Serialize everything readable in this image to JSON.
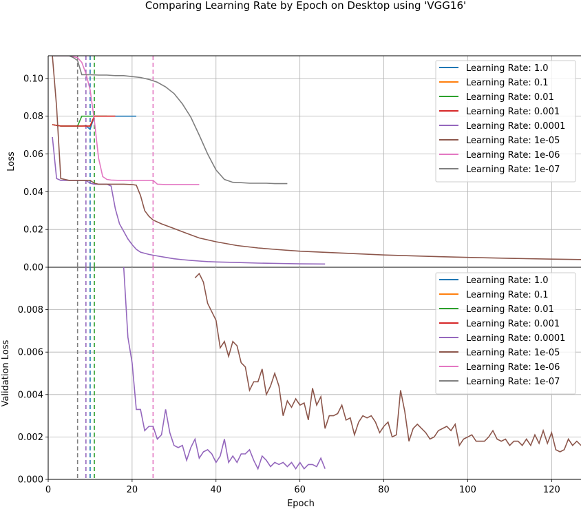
{
  "title": "Comparing Learning Rate by Epoch on Desktop using 'VGG16'",
  "legend_labels": [
    "Learning Rate: 1.0",
    "Learning Rate: 0.1",
    "Learning Rate: 0.01",
    "Learning Rate: 0.001",
    "Learning Rate: 0.0001",
    "Learning Rate: 1e-05",
    "Learning Rate: 1e-06",
    "Learning Rate: 1e-07"
  ],
  "colors": [
    "#1f77b4",
    "#ff7f0e",
    "#2ca02c",
    "#d62728",
    "#9467bd",
    "#8c564b",
    "#e377c2",
    "#7f7f7f"
  ],
  "chart_data": [
    {
      "type": "line",
      "ylabel": "Loss",
      "xlabel": "",
      "xlim": [
        0,
        127
      ],
      "ylim": [
        0,
        0.112
      ],
      "xticks": [
        0,
        20,
        40,
        60,
        80,
        100,
        120
      ],
      "yticks": [
        "0.00",
        "0.02",
        "0.04",
        "0.06",
        "0.08",
        "0.10"
      ],
      "ytick_values": [
        0,
        0.02,
        0.04,
        0.06,
        0.08,
        0.1
      ],
      "grid": true,
      "legend": "upper right",
      "best_epoch_markers": [
        {
          "series": "Learning Rate: 1e-07",
          "epoch": 7
        },
        {
          "series": "Learning Rate: 0.0001",
          "epoch": 9
        },
        {
          "series": "Learning Rate: 1.0",
          "epoch": 10
        },
        {
          "series": "Learning Rate: 0.01",
          "epoch": 11
        },
        {
          "series": "Learning Rate: 1e-06",
          "epoch": 25
        }
      ],
      "series": [
        {
          "name": "Learning Rate: 1.0",
          "x": [
            1,
            3,
            5,
            7,
            8,
            9,
            10,
            11,
            12,
            14,
            16,
            18,
            20,
            21
          ],
          "y": [
            0.0755,
            0.0748,
            0.0748,
            0.0748,
            0.0748,
            0.075,
            0.073,
            0.08,
            0.08,
            0.08,
            0.08,
            0.08,
            0.08,
            0.08
          ]
        },
        {
          "name": "Learning Rate: 0.1",
          "x": [
            1,
            3,
            5,
            7,
            8,
            9,
            10,
            11,
            12,
            14,
            16
          ],
          "y": [
            0.0755,
            0.0748,
            0.0748,
            0.0748,
            0.0748,
            0.0748,
            0.0748,
            0.08,
            0.08,
            0.08,
            0.08
          ]
        },
        {
          "name": "Learning Rate: 0.01",
          "x": [
            1,
            3,
            5,
            7,
            8,
            9,
            10,
            11,
            12,
            14
          ],
          "y": [
            0.0755,
            0.0748,
            0.0748,
            0.0748,
            0.08,
            0.08,
            0.08,
            0.08,
            0.08,
            0.08
          ]
        },
        {
          "name": "Learning Rate: 0.001",
          "x": [
            1,
            3,
            5,
            7,
            8,
            9,
            10,
            11,
            12,
            14,
            16
          ],
          "y": [
            0.0755,
            0.0748,
            0.0748,
            0.0748,
            0.0748,
            0.0748,
            0.0748,
            0.08,
            0.08,
            0.08,
            0.08
          ]
        },
        {
          "name": "Learning Rate: 0.0001",
          "x": [
            1,
            2,
            3,
            5,
            7,
            9,
            10,
            11,
            12,
            13,
            14,
            15,
            16,
            17,
            18,
            19,
            20,
            21,
            22,
            24,
            26,
            28,
            30,
            32,
            34,
            36,
            38,
            40,
            45,
            50,
            55,
            60,
            66
          ],
          "y": [
            0.069,
            0.047,
            0.046,
            0.046,
            0.046,
            0.046,
            0.0445,
            0.044,
            0.044,
            0.044,
            0.044,
            0.043,
            0.031,
            0.023,
            0.019,
            0.015,
            0.012,
            0.0095,
            0.008,
            0.0068,
            0.006,
            0.0052,
            0.0045,
            0.004,
            0.0036,
            0.0033,
            0.003,
            0.0028,
            0.0025,
            0.0022,
            0.002,
            0.0018,
            0.0017
          ]
        },
        {
          "name": "Learning Rate: 1e-05",
          "x": [
            1,
            2,
            3,
            5,
            7,
            9,
            10,
            11,
            12,
            14,
            16,
            18,
            20,
            21,
            22,
            23,
            24,
            25,
            27,
            30,
            33,
            36,
            40,
            45,
            50,
            55,
            60,
            70,
            80,
            90,
            100,
            110,
            120,
            127
          ],
          "y": [
            0.112,
            0.085,
            0.047,
            0.046,
            0.046,
            0.046,
            0.046,
            0.0445,
            0.044,
            0.044,
            0.044,
            0.044,
            0.0438,
            0.0435,
            0.038,
            0.03,
            0.027,
            0.025,
            0.023,
            0.0205,
            0.018,
            0.0155,
            0.0135,
            0.0115,
            0.0102,
            0.0093,
            0.0085,
            0.0075,
            0.0065,
            0.0058,
            0.0052,
            0.0047,
            0.0043,
            0.0041
          ]
        },
        {
          "name": "Learning Rate: 1e-06",
          "x": [
            1,
            3,
            5,
            7,
            8,
            9,
            10,
            11,
            12,
            13,
            14,
            15,
            17,
            20,
            23,
            25,
            26,
            28,
            30,
            33,
            36
          ],
          "y": [
            0.112,
            0.112,
            0.112,
            0.111,
            0.1085,
            0.1025,
            0.094,
            0.078,
            0.058,
            0.048,
            0.0465,
            0.0462,
            0.046,
            0.046,
            0.046,
            0.046,
            0.044,
            0.0438,
            0.0438,
            0.0438,
            0.0438
          ]
        },
        {
          "name": "Learning Rate: 1e-07",
          "x": [
            1,
            3,
            5,
            6,
            7,
            8,
            10,
            12,
            14,
            16,
            18,
            20,
            22,
            24,
            26,
            28,
            30,
            32,
            34,
            36,
            38,
            40,
            42,
            44,
            46,
            48,
            50,
            52,
            54,
            56,
            57
          ],
          "y": [
            0.112,
            0.112,
            0.112,
            0.111,
            0.1095,
            0.102,
            0.102,
            0.1018,
            0.1018,
            0.1015,
            0.1015,
            0.101,
            0.1005,
            0.0995,
            0.098,
            0.0955,
            0.092,
            0.0865,
            0.0795,
            0.07,
            0.06,
            0.0515,
            0.0465,
            0.045,
            0.0448,
            0.0445,
            0.0445,
            0.0445,
            0.0443,
            0.0443,
            0.0443
          ]
        }
      ]
    },
    {
      "type": "line",
      "ylabel": "Validation Loss",
      "xlabel": "Epoch",
      "xlim": [
        0,
        127
      ],
      "ylim": [
        0,
        0.01
      ],
      "xticks": [
        0,
        20,
        40,
        60,
        80,
        100,
        120
      ],
      "yticks": [
        "0.000",
        "0.002",
        "0.004",
        "0.006",
        "0.008"
      ],
      "ytick_values": [
        0,
        0.002,
        0.004,
        0.006,
        0.008
      ],
      "grid": true,
      "legend": "upper right",
      "best_epoch_markers": [
        {
          "series": "Learning Rate: 1e-07",
          "epoch": 7
        },
        {
          "series": "Learning Rate: 0.0001",
          "epoch": 9
        },
        {
          "series": "Learning Rate: 1.0",
          "epoch": 10
        },
        {
          "series": "Learning Rate: 0.01",
          "epoch": 11
        },
        {
          "series": "Learning Rate: 1e-06",
          "epoch": 25
        }
      ],
      "series": [
        {
          "name": "Learning Rate: 1.0",
          "x": [],
          "y": []
        },
        {
          "name": "Learning Rate: 0.1",
          "x": [],
          "y": []
        },
        {
          "name": "Learning Rate: 0.01",
          "x": [],
          "y": []
        },
        {
          "name": "Learning Rate: 0.001",
          "x": [],
          "y": []
        },
        {
          "name": "Learning Rate: 0.0001",
          "x": [
            18,
            19,
            20,
            21,
            22,
            23,
            24,
            25,
            26,
            27,
            28,
            29,
            30,
            31,
            32,
            33,
            34,
            35,
            36,
            37,
            38,
            39,
            40,
            41,
            42,
            43,
            44,
            45,
            46,
            47,
            48,
            49,
            50,
            51,
            52,
            53,
            54,
            55,
            56,
            57,
            58,
            59,
            60,
            61,
            62,
            63,
            64,
            65,
            66
          ],
          "y": [
            0.01,
            0.0067,
            0.0055,
            0.0033,
            0.0033,
            0.0023,
            0.0025,
            0.0025,
            0.0019,
            0.0021,
            0.0033,
            0.0022,
            0.0016,
            0.0015,
            0.0016,
            0.0009,
            0.0015,
            0.0019,
            0.001,
            0.0013,
            0.0014,
            0.0012,
            0.0008,
            0.0011,
            0.0019,
            0.0008,
            0.0011,
            0.0008,
            0.0012,
            0.0012,
            0.0014,
            0.0009,
            0.0005,
            0.0011,
            0.0009,
            0.0006,
            0.0008,
            0.0007,
            0.0008,
            0.0006,
            0.0008,
            0.0005,
            0.0008,
            0.0005,
            0.0007,
            0.0007,
            0.0006,
            0.001,
            0.0005
          ]
        },
        {
          "name": "Learning Rate: 1e-05",
          "x": [
            35,
            36,
            37,
            38,
            39,
            40,
            41,
            42,
            43,
            44,
            45,
            46,
            47,
            48,
            49,
            50,
            51,
            52,
            53,
            54,
            55,
            56,
            57,
            58,
            59,
            60,
            61,
            62,
            63,
            64,
            65,
            66,
            67,
            68,
            69,
            70,
            71,
            72,
            73,
            74,
            75,
            76,
            77,
            78,
            79,
            80,
            81,
            82,
            83,
            84,
            85,
            86,
            87,
            88,
            89,
            90,
            91,
            92,
            93,
            94,
            95,
            96,
            97,
            98,
            99,
            100,
            101,
            102,
            103,
            104,
            105,
            106,
            107,
            108,
            109,
            110,
            111,
            112,
            113,
            114,
            115,
            116,
            117,
            118,
            119,
            120,
            121,
            122,
            123,
            124,
            125,
            126,
            127
          ],
          "y": [
            0.0095,
            0.0097,
            0.0093,
            0.0083,
            0.0079,
            0.0075,
            0.0062,
            0.0065,
            0.0058,
            0.0065,
            0.0063,
            0.0055,
            0.0053,
            0.0042,
            0.0046,
            0.0046,
            0.0052,
            0.004,
            0.0044,
            0.005,
            0.0044,
            0.003,
            0.0037,
            0.0034,
            0.0038,
            0.0035,
            0.0036,
            0.0028,
            0.0043,
            0.0035,
            0.0039,
            0.0024,
            0.003,
            0.003,
            0.0031,
            0.0035,
            0.0028,
            0.0029,
            0.0021,
            0.0027,
            0.003,
            0.0029,
            0.003,
            0.0027,
            0.0022,
            0.0025,
            0.0027,
            0.002,
            0.0021,
            0.0042,
            0.0032,
            0.0018,
            0.0024,
            0.0026,
            0.0024,
            0.0022,
            0.0019,
            0.002,
            0.0023,
            0.0024,
            0.0025,
            0.0023,
            0.0026,
            0.0016,
            0.0019,
            0.002,
            0.0021,
            0.0018,
            0.0018,
            0.0018,
            0.002,
            0.0023,
            0.0019,
            0.0018,
            0.0019,
            0.0016,
            0.0018,
            0.0018,
            0.0016,
            0.0019,
            0.0016,
            0.0021,
            0.0017,
            0.0023,
            0.0017,
            0.0022,
            0.0014,
            0.0013,
            0.0014,
            0.0019,
            0.0016,
            0.0018,
            0.0016
          ]
        },
        {
          "name": "Learning Rate: 1e-06",
          "x": [],
          "y": []
        },
        {
          "name": "Learning Rate: 1e-07",
          "x": [],
          "y": []
        }
      ]
    }
  ]
}
